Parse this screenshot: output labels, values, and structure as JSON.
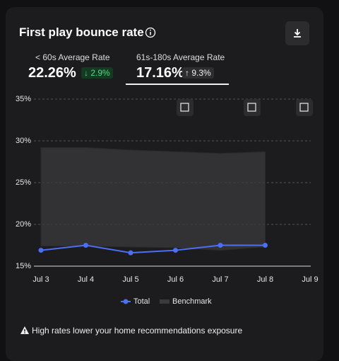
{
  "header": {
    "title": "First play bounce rate"
  },
  "stats": [
    {
      "label": "< 60s Average Rate",
      "value": "22.26%",
      "change": "↓ 2.9%"
    },
    {
      "label": "61s-180s Average Rate",
      "value": "17.16%",
      "change": "↑ 9.3%"
    }
  ],
  "chart_data": {
    "type": "line",
    "categories": [
      "Jul 3",
      "Jul 4",
      "Jul 5",
      "Jul 6",
      "Jul 7",
      "Jul 8",
      "Jul 9"
    ],
    "ylim": [
      15,
      35
    ],
    "yticks": [
      {
        "value": 15,
        "label": "15%"
      },
      {
        "value": 20,
        "label": "20%"
      },
      {
        "value": 25,
        "label": "25%"
      },
      {
        "value": 30,
        "label": "30%"
      },
      {
        "value": 35,
        "label": "35%"
      }
    ],
    "grid": true,
    "series": [
      {
        "name": "Total",
        "color": "#4d6ef5",
        "values": [
          16.9,
          17.5,
          16.6,
          16.9,
          17.5,
          17.5,
          null
        ]
      },
      {
        "name": "Benchmark",
        "color": "#3a3a3c",
        "high": [
          29.2,
          29.2,
          28.9,
          28.7,
          28.5,
          28.7,
          null
        ],
        "low": [
          17.4,
          17.4,
          17.3,
          17.2,
          16.9,
          17.3,
          null
        ]
      }
    ]
  },
  "footer": {
    "warning": "High rates lower your home recommendations exposure"
  }
}
